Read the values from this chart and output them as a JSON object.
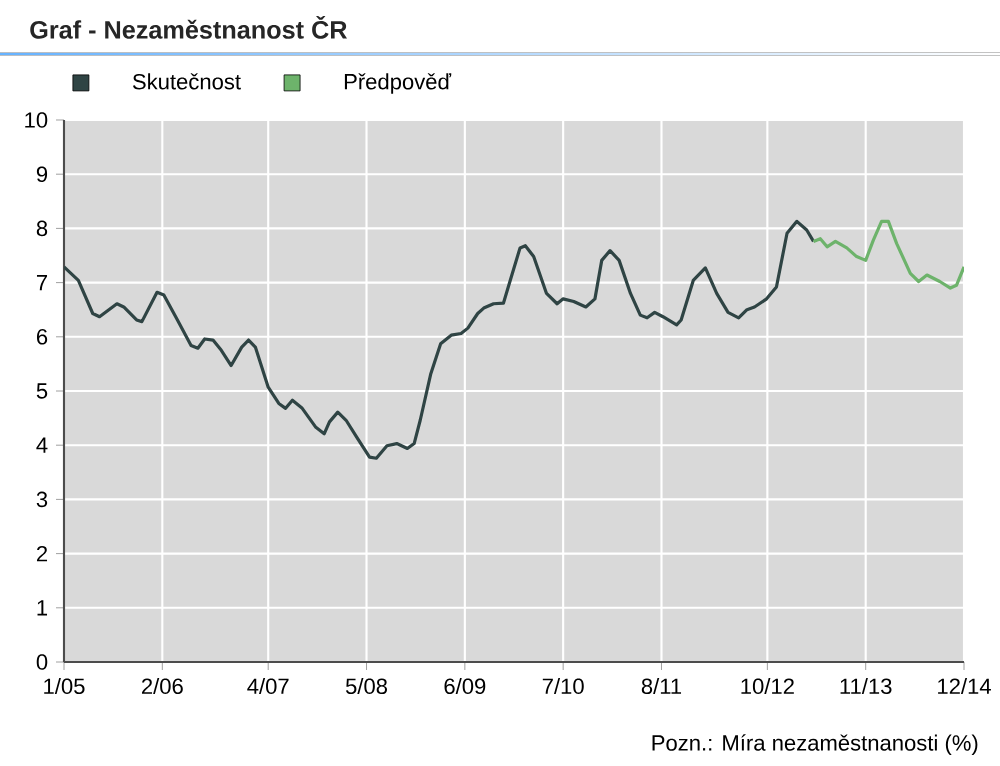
{
  "chart_data": {
    "type": "line",
    "title": "Graf - Nezaměstnanost ČR",
    "annotations": [
      "Pozn.: Míra nezaměstnanosti (%)"
    ],
    "xlim": [
      "2005-01",
      "2014-12"
    ],
    "ylim": [
      0,
      10
    ],
    "xticks": [
      {
        "value": "2005-01",
        "label": "1/05"
      },
      {
        "value": "2006-02",
        "label": "2/06"
      },
      {
        "value": "2007-04",
        "label": "4/07"
      },
      {
        "value": "2008-05",
        "label": "5/08"
      },
      {
        "value": "2009-06",
        "label": "6/09"
      },
      {
        "value": "2010-07",
        "label": "7/10"
      },
      {
        "value": "2011-08",
        "label": "8/11"
      },
      {
        "value": "2012-10",
        "label": "10/12"
      },
      {
        "value": "2013-11",
        "label": "11/13"
      },
      {
        "value": "2014-12",
        "label": "12/14"
      }
    ],
    "yticks": [
      0,
      1,
      2,
      3,
      4,
      5,
      6,
      7,
      8,
      9,
      10
    ],
    "grid": true,
    "legend": "top left",
    "marker": "none",
    "line_style": "solid",
    "series": [
      {
        "name": "Skutečnost",
        "color": "#2f4444",
        "x": [
          "2005-01-01",
          "2005-02-28",
          "2005-04-25",
          "2005-05-22",
          "2005-08-01",
          "2005-08-28",
          "2005-10-19",
          "2005-11-10",
          "2006-01-10",
          "2006-02-07",
          "2006-04-01",
          "2006-05-25",
          "2006-06-22",
          "2006-07-19",
          "2006-08-22",
          "2006-09-25",
          "2006-11-04",
          "2006-12-16",
          "2007-01-13",
          "2007-02-10",
          "2007-04-01",
          "2007-05-13",
          "2007-06-10",
          "2007-07-07",
          "2007-08-16",
          "2007-10-10",
          "2007-11-13",
          "2007-12-04",
          "2008-01-07",
          "2008-02-10",
          "2008-03-22",
          "2008-05-13",
          "2008-06-10",
          "2008-07-22",
          "2008-09-01",
          "2008-10-13",
          "2008-11-10",
          "2008-12-04",
          "2009-01-16",
          "2009-02-25",
          "2009-04-07",
          "2009-05-16",
          "2009-06-13",
          "2009-07-22",
          "2009-08-16",
          "2009-09-25",
          "2009-11-04",
          "2009-12-01",
          "2010-01-10",
          "2010-02-01",
          "2010-03-04",
          "2010-04-25",
          "2010-06-07",
          "2010-07-01",
          "2010-08-13",
          "2010-10-01",
          "2010-11-07",
          "2010-12-04",
          "2011-01-07",
          "2011-02-13",
          "2011-03-28",
          "2011-05-07",
          "2011-06-04",
          "2011-07-04",
          "2011-08-07",
          "2011-10-01",
          "2011-10-19",
          "2011-12-07",
          "2012-01-25",
          "2012-03-10",
          "2012-04-25",
          "2012-06-07",
          "2012-07-10",
          "2012-08-10",
          "2012-09-28",
          "2012-11-07",
          "2012-12-19",
          "2013-01-28",
          "2013-03-07",
          "2013-04-04"
        ],
        "values": [
          7.29,
          7.04,
          6.43,
          6.37,
          6.61,
          6.55,
          6.31,
          6.28,
          6.82,
          6.77,
          6.31,
          5.84,
          5.79,
          5.96,
          5.94,
          5.75,
          5.47,
          5.81,
          5.94,
          5.81,
          5.07,
          4.77,
          4.68,
          4.83,
          4.68,
          4.33,
          4.21,
          4.43,
          4.61,
          4.46,
          4.15,
          3.78,
          3.76,
          3.99,
          4.03,
          3.94,
          4.03,
          4.46,
          5.32,
          5.87,
          6.03,
          6.06,
          6.16,
          6.43,
          6.53,
          6.61,
          6.62,
          7.04,
          7.64,
          7.68,
          7.48,
          6.8,
          6.61,
          6.7,
          6.65,
          6.55,
          6.7,
          7.41,
          7.59,
          7.41,
          6.8,
          6.4,
          6.35,
          6.45,
          6.37,
          6.22,
          6.31,
          7.04,
          7.27,
          6.8,
          6.45,
          6.35,
          6.5,
          6.55,
          6.7,
          6.92,
          7.91,
          8.13,
          7.97,
          7.76
        ]
      },
      {
        "name": "Předpověď",
        "color": "#6db36b",
        "x": [
          "2013-04-04",
          "2013-05-01",
          "2013-05-28",
          "2013-07-01",
          "2013-08-16",
          "2013-09-25",
          "2013-11-01",
          "2013-12-01",
          "2014-01-04",
          "2014-02-01",
          "2014-03-04",
          "2014-04-28",
          "2014-06-01",
          "2014-07-04",
          "2014-08-25",
          "2014-10-07",
          "2014-11-01",
          "2014-12-01"
        ],
        "values": [
          7.76,
          7.81,
          7.66,
          7.76,
          7.64,
          7.48,
          7.41,
          7.78,
          8.13,
          8.13,
          7.72,
          7.17,
          7.02,
          7.14,
          7.02,
          6.9,
          6.95,
          7.29
        ]
      }
    ]
  }
}
